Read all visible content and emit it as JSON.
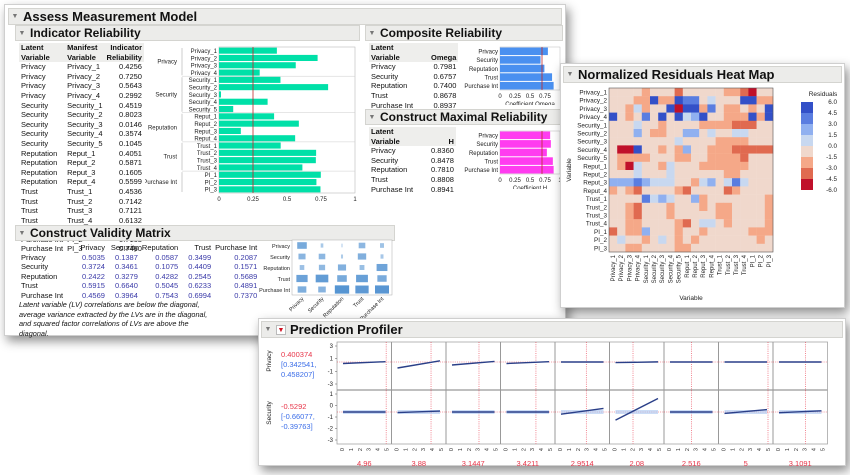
{
  "main_window": {
    "title": "Assess Measurement Model",
    "indicator_reliability": {
      "title": "Indicator Reliability",
      "columns": [
        "Latent Variable",
        "Manifest Variable",
        "Indicator Reliability"
      ],
      "col_labels": {
        "lv1": "Latent",
        "lv2": "Variable",
        "mv1": "Manifest",
        "mv2": "Variable",
        "ir1": "Indicator",
        "ir2": "Reliability"
      },
      "rows": [
        [
          "Privacy",
          "Privacy_1",
          "0.4256"
        ],
        [
          "Privacy",
          "Privacy_2",
          "0.7250"
        ],
        [
          "Privacy",
          "Privacy_3",
          "0.5643"
        ],
        [
          "Privacy",
          "Privacy_4",
          "0.2992"
        ],
        [
          "Security",
          "Security_1",
          "0.4519"
        ],
        [
          "Security",
          "Security_2",
          "0.8023"
        ],
        [
          "Security",
          "Security_3",
          "0.0146"
        ],
        [
          "Security",
          "Security_4",
          "0.3574"
        ],
        [
          "Security",
          "Security_5",
          "0.1045"
        ],
        [
          "Reputation",
          "Reput_1",
          "0.4051"
        ],
        [
          "Reputation",
          "Reput_2",
          "0.5871"
        ],
        [
          "Reputation",
          "Reput_3",
          "0.1605"
        ],
        [
          "Reputation",
          "Reput_4",
          "0.5599"
        ],
        [
          "Trust",
          "Trust_1",
          "0.4536"
        ],
        [
          "Trust",
          "Trust_2",
          "0.7142"
        ],
        [
          "Trust",
          "Trust_3",
          "0.7121"
        ],
        [
          "Trust",
          "Trust_4",
          "0.6132"
        ],
        [
          "Purchase Int",
          "PI_1",
          "0.7486"
        ],
        [
          "Purchase Int",
          "PI_2",
          "0.7163"
        ],
        [
          "Purchase Int",
          "PI_3",
          "0.7460"
        ]
      ],
      "chart": {
        "xlabel": "Indicator Reliability (Squared Standardized Loading)",
        "ticks": [
          "0",
          "0.25",
          "0.5",
          "0.75",
          "1"
        ],
        "groups": [
          "Privacy",
          "Security",
          "Reputation",
          "Trust",
          "Purchase Int"
        ],
        "bar_color": "#00e0a8",
        "ref_line": 0.25
      }
    },
    "composite_reliability": {
      "title": "Composite Reliability",
      "col_labels": {
        "lv1": "Latent",
        "lv2": "Variable",
        "val": "Omega"
      },
      "rows": [
        [
          "Privacy",
          "0.7981"
        ],
        [
          "Security",
          "0.6757"
        ],
        [
          "Reputation",
          "0.7400"
        ],
        [
          "Trust",
          "0.8678"
        ],
        [
          "Purchase Int",
          "0.8937"
        ]
      ],
      "chart": {
        "xlabel": "Coefficient Omega",
        "ticks": [
          "0",
          "0.25",
          "0.5",
          "0.75"
        ],
        "bar_color": "#4a90f0",
        "ref_line": 0.7
      }
    },
    "maximal_reliability": {
      "title": "Construct Maximal Reliability",
      "col_labels": {
        "lv1": "Latent",
        "lv2": "Variable",
        "val": "H"
      },
      "rows": [
        [
          "Privacy",
          "0.8360"
        ],
        [
          "Security",
          "0.8478"
        ],
        [
          "Reputation",
          "0.7810"
        ],
        [
          "Trust",
          "0.8808"
        ],
        [
          "Purchase Int",
          "0.8941"
        ]
      ],
      "chart": {
        "xlabel": "Coefficient H",
        "ticks": [
          "0",
          "0.25",
          "0.5",
          "0.75",
          "1"
        ],
        "bar_color": "#ff3cf0",
        "ref_line": 0.7
      }
    },
    "validity_matrix": {
      "title": "Construct Validity Matrix",
      "headers": [
        "Privacy",
        "Security",
        "Reputation",
        "Trust",
        "Purchase Int"
      ],
      "rows": [
        {
          "label": "Privacy",
          "values": [
            "0.5035",
            "0.1387",
            "0.0587",
            "0.3499",
            "0.2087"
          ]
        },
        {
          "label": "Security",
          "values": [
            "0.3724",
            "0.3461",
            "0.1075",
            "0.4409",
            "0.1571"
          ]
        },
        {
          "label": "Reputation",
          "values": [
            "0.2422",
            "0.3279",
            "0.4282",
            "0.2545",
            "0.5689"
          ]
        },
        {
          "label": "Trust",
          "values": [
            "0.5915",
            "0.6640",
            "0.5045",
            "0.6233",
            "0.4891"
          ]
        },
        {
          "label": "Purchase Int",
          "values": [
            "0.4569",
            "0.3964",
            "0.7543",
            "0.6994",
            "0.7370"
          ]
        }
      ],
      "note": "Latent variable (LV) correlations are below the diagonal, average variance extracted by the LVs are in the diagonal, and squared factor correlations of LVs are above the diagonal.",
      "mini_x_labels": [
        "Privacy",
        "Security",
        "Reputation",
        "Trust",
        "Purchase Int"
      ]
    }
  },
  "heatmap_window": {
    "title": "Normalized Residuals Heat Map",
    "ylabel": "Variable",
    "xlabel": "Variable",
    "variables": [
      "Privacy_1",
      "Privacy_2",
      "Privacy_3",
      "Privacy_4",
      "Security_1",
      "Security_2",
      "Security_3",
      "Security_4",
      "Security_5",
      "Reput_1",
      "Reput_2",
      "Reput_3",
      "Reput_4",
      "Trust_1",
      "Trust_2",
      "Trust_3",
      "Trust_4",
      "PI_1",
      "PI_2",
      "PI_3"
    ],
    "legend": {
      "title": "Residuals",
      "values": [
        "6.0",
        "4.5",
        "3.0",
        "1.5",
        "0.0",
        "-1.5",
        "-3.0",
        "-4.5",
        "-6.0"
      ],
      "colors": [
        "#3350c8",
        "#5a7de0",
        "#90b0f0",
        "#c8d8f0",
        "#f0d8cc",
        "#f5a888",
        "#e06a50",
        "#c0102a"
      ]
    }
  },
  "profiler_window": {
    "title": "Prediction Profiler",
    "responses": [
      {
        "name": "Privacy",
        "value": "0.400374",
        "ci": "[0.342541,",
        "ci2": "0.458207]",
        "ticks": [
          "3",
          "1",
          "-1",
          "-3"
        ]
      },
      {
        "name": "Security",
        "value": "-0.5292",
        "ci": "[-0.66077,",
        "ci2": "-0.39763]",
        "ticks": [
          "1",
          "0",
          "-1",
          "-2",
          "-3"
        ]
      }
    ],
    "factors": [
      {
        "name": "Privacy_1",
        "value": "4.96"
      },
      {
        "name": "Privacy_2",
        "value": "3.88"
      },
      {
        "name": "Privacy_3",
        "value": "3.1447"
      },
      {
        "name": "Privacy_4",
        "value": "3.4211"
      },
      {
        "name": "Security_1",
        "value": "2.9514"
      },
      {
        "name": "Security_2",
        "value": "2.08"
      },
      {
        "name": "Security_3",
        "value": "2.516"
      },
      {
        "name": "Security_4",
        "value": "5"
      },
      {
        "name": "Security_5",
        "value": "3.1091"
      }
    ],
    "x_ticks": [
      "0",
      "1",
      "2",
      "3",
      "4",
      "5"
    ],
    "accent_red": "#e8364a",
    "accent_blue": "#3c6ee8"
  }
}
